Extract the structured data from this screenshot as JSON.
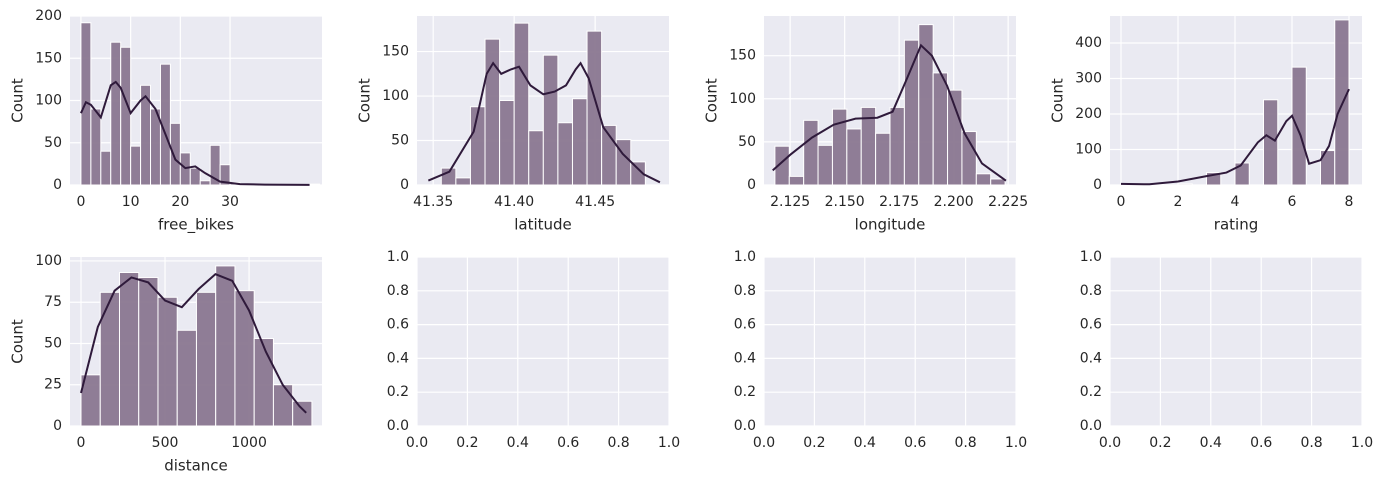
{
  "chart_data": [
    {
      "type": "histogram",
      "x_label": "free_bikes",
      "y_label": "Count",
      "grid": true,
      "color": "#8a7790",
      "line_color": "#2f1a3b",
      "bins": [
        0,
        2,
        4,
        6,
        8,
        10,
        12,
        14,
        16,
        18,
        20,
        22,
        24,
        26,
        28,
        30,
        32,
        34,
        36,
        38,
        40,
        42,
        44,
        46,
        48
      ],
      "values": [
        192,
        90,
        40,
        169,
        163,
        46,
        118,
        90,
        143,
        73,
        38,
        20,
        5,
        47,
        24,
        3,
        1,
        1,
        0,
        1,
        0,
        0,
        0,
        1
      ],
      "kde": {
        "x": [
          0,
          1,
          2,
          4,
          6,
          7,
          8,
          10,
          12,
          13,
          15,
          17,
          19,
          21,
          23,
          25,
          28,
          32,
          37,
          46
        ],
        "y": [
          85,
          98,
          95,
          80,
          118,
          122,
          115,
          85,
          100,
          105,
          90,
          60,
          30,
          20,
          22,
          14,
          4,
          1,
          0.5,
          0.2
        ]
      },
      "xlim": [
        -2.2,
        48.5
      ],
      "ylim": [
        0,
        200
      ],
      "xticks": [
        0,
        10,
        20,
        30
      ],
      "yticks": [
        0,
        50,
        100,
        150,
        200
      ]
    },
    {
      "type": "histogram",
      "x_label": "latitude",
      "y_label": "Count",
      "grid": true,
      "color": "#8a7790",
      "line_color": "#2f1a3b",
      "bins": [
        41.355,
        41.364,
        41.373,
        41.382,
        41.391,
        41.4,
        41.409,
        41.418,
        41.427,
        41.436,
        41.445,
        41.454,
        41.463,
        41.472,
        41.481
      ],
      "values": [
        19,
        8,
        88,
        164,
        95,
        182,
        61,
        146,
        70,
        97,
        173,
        67,
        51,
        26
      ],
      "kde": {
        "x": [
          41.347,
          41.36,
          41.375,
          41.383,
          41.387,
          41.392,
          41.398,
          41.403,
          41.41,
          41.418,
          41.425,
          41.432,
          41.438,
          41.441,
          41.446,
          41.455,
          41.467,
          41.48,
          41.49
        ],
        "y": [
          5,
          15,
          60,
          125,
          137,
          125,
          130,
          133,
          112,
          102,
          105,
          112,
          130,
          137,
          120,
          65,
          35,
          12,
          3
        ]
      },
      "xlim": [
        41.34,
        41.4956
      ],
      "ylim": [
        0,
        190
      ],
      "xticks": [
        41.35,
        {
          "value": 41.4,
          "label": "41.40"
        },
        41.45
      ],
      "yticks": [
        0,
        50,
        100,
        150
      ]
    },
    {
      "type": "histogram",
      "x_label": "longitude",
      "y_label": "Count",
      "grid": true,
      "color": "#8a7790",
      "line_color": "#2f1a3b",
      "bins": [
        2.118,
        2.1246,
        2.1312,
        2.1378,
        2.1444,
        2.151,
        2.1576,
        2.1642,
        2.1708,
        2.1774,
        2.184,
        2.1906,
        2.1972,
        2.2038,
        2.2104,
        2.217,
        2.2236
      ],
      "values": [
        45,
        10,
        75,
        46,
        88,
        65,
        90,
        60,
        90,
        168,
        186,
        130,
        110,
        62,
        13,
        7
      ],
      "kde": {
        "x": [
          2.117,
          2.125,
          2.135,
          2.145,
          2.155,
          2.165,
          2.172,
          2.178,
          2.185,
          2.19,
          2.197,
          2.205,
          2.213,
          2.224
        ],
        "y": [
          17,
          35,
          55,
          70,
          77,
          78,
          85,
          120,
          162,
          150,
          115,
          60,
          25,
          5
        ]
      },
      "xlim": [
        2.113,
        2.2286
      ],
      "ylim": [
        0,
        196
      ],
      "xticks": [
        2.125,
        {
          "value": 2.15,
          "label": "2.150"
        },
        2.175,
        {
          "value": 2.2,
          "label": "2.200"
        },
        2.225
      ],
      "yticks": [
        0,
        50,
        100,
        150
      ]
    },
    {
      "type": "histogram",
      "x_label": "rating",
      "y_label": "Count",
      "grid": true,
      "color": "#8a7790",
      "line_color": "#2f1a3b",
      "bins": [
        0,
        0.5,
        1,
        1.5,
        2,
        2.5,
        3,
        3.5,
        4,
        4.5,
        5,
        5.5,
        6,
        6.5,
        7,
        7.5,
        8
      ],
      "values": [
        2,
        0,
        1,
        0,
        3,
        0,
        35,
        0,
        62,
        0,
        240,
        0,
        332,
        0,
        97,
        465
      ],
      "kde": {
        "x": [
          0,
          1,
          2,
          3,
          3.7,
          4.2,
          4.8,
          5.1,
          5.4,
          5.8,
          6,
          6.3,
          6.6,
          7,
          7.3,
          7.6,
          8
        ],
        "y": [
          3,
          2,
          10,
          25,
          35,
          55,
          120,
          140,
          125,
          180,
          195,
          140,
          60,
          70,
          110,
          200,
          270
        ]
      },
      "xlim": [
        -0.386,
        8.456
      ],
      "ylim": [
        0,
        476
      ],
      "xticks": [
        0,
        2,
        4,
        6,
        8
      ],
      "yticks": [
        0,
        100,
        200,
        300,
        400
      ]
    },
    {
      "type": "histogram",
      "x_label": "distance",
      "y_label": "Count",
      "grid": true,
      "color": "#8a7790",
      "line_color": "#2f1a3b",
      "bins": [
        0,
        114.5,
        229,
        343.5,
        458,
        572.5,
        687,
        801.5,
        916,
        1030.5,
        1145,
        1259.5,
        1374
      ],
      "values": [
        31,
        81,
        93,
        90,
        78,
        58,
        81,
        97,
        82,
        53,
        25,
        15
      ],
      "kde": {
        "x": [
          0,
          100,
          200,
          300,
          400,
          500,
          600,
          700,
          800,
          900,
          1000,
          1100,
          1200,
          1300,
          1340
        ],
        "y": [
          20,
          60,
          82,
          90,
          87,
          76,
          72,
          83,
          92,
          88,
          70,
          45,
          25,
          12,
          8
        ]
      },
      "xlim": [
        -65.5,
        1434
      ],
      "ylim": [
        0,
        102.4
      ],
      "xticks": [
        0,
        500,
        1000
      ],
      "yticks": [
        0,
        25,
        50,
        75,
        100
      ]
    },
    {
      "type": "empty",
      "grid": true,
      "xlim": [
        0,
        1
      ],
      "ylim": [
        0,
        1
      ],
      "xticks": [
        {
          "value": 0,
          "label": "0.0"
        },
        {
          "value": 0.2,
          "label": "0.2"
        },
        {
          "value": 0.4,
          "label": "0.4"
        },
        {
          "value": 0.6,
          "label": "0.6"
        },
        {
          "value": 0.8,
          "label": "0.8"
        },
        {
          "value": 1,
          "label": "1.0"
        }
      ],
      "yticks": [
        {
          "value": 0,
          "label": "0.0"
        },
        {
          "value": 0.2,
          "label": "0.2"
        },
        {
          "value": 0.4,
          "label": "0.4"
        },
        {
          "value": 0.6,
          "label": "0.6"
        },
        {
          "value": 0.8,
          "label": "0.8"
        },
        {
          "value": 1,
          "label": "1.0"
        }
      ]
    },
    {
      "type": "empty",
      "grid": true,
      "xlim": [
        0,
        1
      ],
      "ylim": [
        0,
        1
      ],
      "xticks": [
        {
          "value": 0,
          "label": "0.0"
        },
        {
          "value": 0.2,
          "label": "0.2"
        },
        {
          "value": 0.4,
          "label": "0.4"
        },
        {
          "value": 0.6,
          "label": "0.6"
        },
        {
          "value": 0.8,
          "label": "0.8"
        },
        {
          "value": 1,
          "label": "1.0"
        }
      ],
      "yticks": [
        {
          "value": 0,
          "label": "0.0"
        },
        {
          "value": 0.2,
          "label": "0.2"
        },
        {
          "value": 0.4,
          "label": "0.4"
        },
        {
          "value": 0.6,
          "label": "0.6"
        },
        {
          "value": 0.8,
          "label": "0.8"
        },
        {
          "value": 1,
          "label": "1.0"
        }
      ]
    },
    {
      "type": "empty",
      "grid": true,
      "xlim": [
        0,
        1
      ],
      "ylim": [
        0,
        1
      ],
      "xticks": [
        {
          "value": 0,
          "label": "0.0"
        },
        {
          "value": 0.2,
          "label": "0.2"
        },
        {
          "value": 0.4,
          "label": "0.4"
        },
        {
          "value": 0.6,
          "label": "0.6"
        },
        {
          "value": 0.8,
          "label": "0.8"
        },
        {
          "value": 1,
          "label": "1.0"
        }
      ],
      "yticks": [
        {
          "value": 0,
          "label": "0.0"
        },
        {
          "value": 0.2,
          "label": "0.2"
        },
        {
          "value": 0.4,
          "label": "0.4"
        },
        {
          "value": 0.6,
          "label": "0.6"
        },
        {
          "value": 0.8,
          "label": "0.8"
        },
        {
          "value": 1,
          "label": "1.0"
        }
      ]
    }
  ]
}
